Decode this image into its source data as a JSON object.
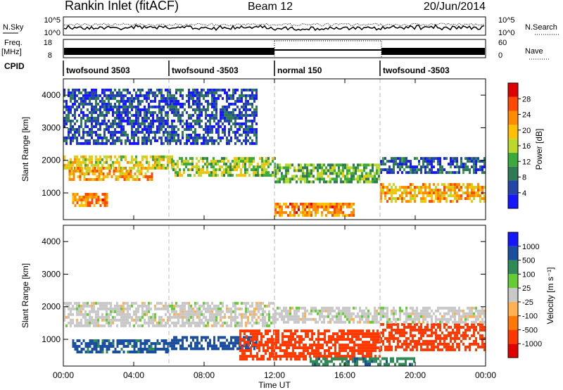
{
  "header": {
    "station": "Rankin Inlet (fitACF)",
    "beam": "Beam 12",
    "date": "20/Jun/2014"
  },
  "top_panels": {
    "nsky_label": "N.Sky",
    "nsky_ticks": [
      "10^5",
      "10^0"
    ],
    "nsearch_label": "N.Search",
    "nsearch_ticks": [
      "10^5",
      "10^0"
    ],
    "freq_label": "Freq.",
    "freq_unit": "[MHz]",
    "freq_ticks": [
      "18",
      "8"
    ],
    "nave_label": "Nave",
    "nave_ticks": [
      "60",
      "0"
    ],
    "cpid_label": "CPID",
    "cpid_segments": [
      {
        "label": "twofsound 3503",
        "start": 0,
        "end": 6
      },
      {
        "label": "twofsound -3503",
        "start": 6,
        "end": 12
      },
      {
        "label": "normal 150",
        "start": 12,
        "end": 18
      },
      {
        "label": "twofsound -3503",
        "start": 18,
        "end": 24
      }
    ]
  },
  "chart_data": [
    {
      "type": "heatmap",
      "title": "",
      "ylabel": "Slant Range [km]",
      "xlabel": "Time UT",
      "xlim": [
        0,
        24
      ],
      "ylim": [
        180,
        4500
      ],
      "yticks": [
        "1000",
        "2000",
        "3000",
        "4000"
      ],
      "xticks": [
        "00:00",
        "04:00",
        "08:00",
        "12:00",
        "16:00",
        "20:00",
        "00:00"
      ],
      "colorbar": {
        "label": "Power [dB]",
        "ticks": [
          "4",
          "8",
          "12",
          "16",
          "20",
          "24",
          "28"
        ],
        "range": [
          0,
          30
        ]
      },
      "regions": [
        {
          "t0": 0,
          "t1": 6.2,
          "r0": 1750,
          "r1": 2150,
          "value": 16
        },
        {
          "t0": 0.3,
          "t1": 5.0,
          "r0": 1400,
          "r1": 1800,
          "value": 20
        },
        {
          "t0": 0.5,
          "t1": 2.5,
          "r0": 600,
          "r1": 1000,
          "value": 22
        },
        {
          "t0": 6.2,
          "t1": 12,
          "r0": 1500,
          "r1": 2100,
          "value": 14
        },
        {
          "t0": 12,
          "t1": 18,
          "r0": 1300,
          "r1": 1900,
          "value": 12
        },
        {
          "t0": 12,
          "t1": 16.5,
          "r0": 300,
          "r1": 700,
          "value": 22
        },
        {
          "t0": 18,
          "t1": 24,
          "r0": 700,
          "r1": 1300,
          "value": 20
        },
        {
          "t0": 18,
          "t1": 24,
          "r0": 1600,
          "r1": 2100,
          "value": 6
        },
        {
          "t0": 0,
          "t1": 11,
          "r0": 2500,
          "r1": 4200,
          "value": 5
        }
      ]
    },
    {
      "type": "heatmap",
      "title": "",
      "ylabel": "Slant Range [km]",
      "xlabel": "Time UT",
      "xlim": [
        0,
        24
      ],
      "ylim": [
        180,
        4500
      ],
      "yticks": [
        "1000",
        "2000",
        "3000",
        "4000"
      ],
      "xticks": [
        "00:00",
        "04:00",
        "08:00",
        "12:00",
        "16:00",
        "20:00",
        "00:00"
      ],
      "colorbar": {
        "label": "Velocity [m s⁻¹]",
        "ticks": [
          "1000",
          "500",
          "100",
          "25",
          "-25",
          "-100",
          "-500",
          "-1000"
        ]
      },
      "regions": [
        {
          "t0": 0,
          "t1": 12,
          "r0": 1400,
          "r1": 2150,
          "value": 0
        },
        {
          "t0": 0.5,
          "t1": 6,
          "r0": 600,
          "r1": 1000,
          "value": 120
        },
        {
          "t0": 6,
          "t1": 11,
          "r0": 700,
          "r1": 1100,
          "value": 200
        },
        {
          "t0": 10,
          "t1": 18,
          "r0": 400,
          "r1": 1300,
          "value": -150
        },
        {
          "t0": 18,
          "t1": 24,
          "r0": 700,
          "r1": 1500,
          "value": -150
        },
        {
          "t0": 14,
          "t1": 20,
          "r0": 200,
          "r1": 450,
          "value": 80
        },
        {
          "t0": 12,
          "t1": 24,
          "r0": 1500,
          "r1": 2000,
          "value": 0
        }
      ]
    }
  ],
  "colors": {
    "power": [
      "#1515ff",
      "#2444a8",
      "#2e7a55",
      "#3aaa3a",
      "#bcd92b",
      "#ffc000",
      "#ff8c00",
      "#ff4800",
      "#e00000"
    ],
    "velocity": [
      "#e00000",
      "#ff3800",
      "#ff7800",
      "#ffb050",
      "#c8c8c8",
      "#66cc33",
      "#2e8b57",
      "#1a4fa0",
      "#1515ff"
    ],
    "grey": "#c8c8c8"
  }
}
